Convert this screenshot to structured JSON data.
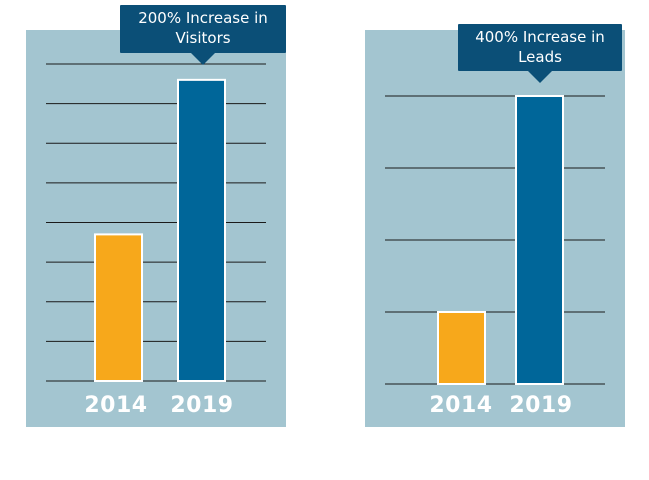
{
  "colors": {
    "panel_bg": "#a3c5d0",
    "bar_2014": "#f7a81b",
    "bar_2019": "#006699",
    "callout_bg": "#0b4f77",
    "gridline": "#1a1a1a",
    "bar_border": "#ffffff"
  },
  "chart_data": [
    {
      "type": "bar",
      "title": "",
      "annotation": "200% Increase in Visitors",
      "categories": [
        "2014",
        "2019"
      ],
      "values": [
        3.7,
        7.6
      ],
      "ylim": [
        0,
        8
      ],
      "grid": true
    },
    {
      "type": "bar",
      "title": "",
      "annotation": "400% Increase in Leads",
      "categories": [
        "2014",
        "2019"
      ],
      "values": [
        1.0,
        4.0
      ],
      "ylim": [
        0,
        4
      ],
      "grid": true
    }
  ]
}
